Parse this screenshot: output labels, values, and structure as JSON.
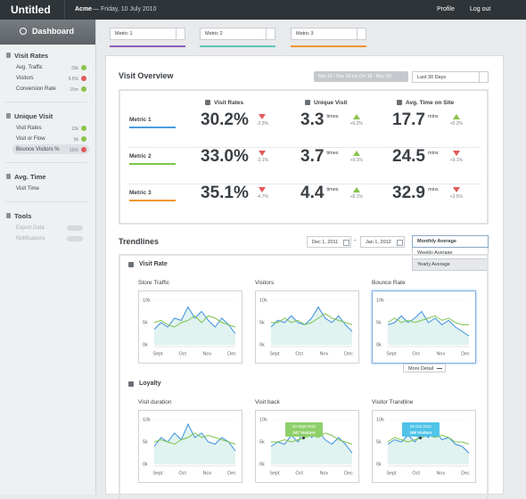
{
  "topbar": {
    "app_title": "Untitled",
    "account": "Acme",
    "date": "— Friday, 10 July 2010",
    "links": [
      "Profile",
      "Log out"
    ]
  },
  "sidebar": {
    "header": "Dashboard",
    "sections": [
      {
        "title": "Visit Rates",
        "items": [
          {
            "label": "Avg. Traffic",
            "badge": "29k",
            "trend": "up"
          },
          {
            "label": "Visitors",
            "badge": "9.5%",
            "trend": "down"
          },
          {
            "label": "Conversion Rate",
            "badge": "15m",
            "trend": "up"
          }
        ]
      },
      {
        "title": "Unique Visit",
        "items": [
          {
            "label": "Visit Rates",
            "badge": "13k",
            "trend": "up"
          },
          {
            "label": "Visit or Flow",
            "badge": "5k",
            "trend": "up"
          },
          {
            "label": "Bounce Visitors %",
            "badge": "16%",
            "trend": "down",
            "selected": true
          }
        ]
      },
      {
        "title": "Avg. Time",
        "items": [
          {
            "label": "Visit Time"
          }
        ]
      },
      {
        "title": "Tools",
        "items": [
          {
            "label": "Export Data",
            "toggle": "off"
          },
          {
            "label": "Notifications",
            "toggle": "off"
          }
        ]
      }
    ]
  },
  "metric_selectors": [
    {
      "label": "Metric 1",
      "color": "#8e5fb5"
    },
    {
      "label": "Metric 2",
      "color": "#5cc6b5"
    },
    {
      "label": "Metric 3",
      "color": "#f0962e"
    }
  ],
  "overview": {
    "title": "Visit Overview",
    "date_range": "Nov 15 - Dec 14 (vs Oct 16 - Nov 15)",
    "period": "Last 30 Days",
    "columns": [
      "Visit Rates",
      "Unique Visit",
      "Avg. Time on Site"
    ],
    "rows": [
      {
        "name": "Metric 1",
        "color": "#4a9de0",
        "cells": [
          {
            "value": "30.2%",
            "change": "-3.3%",
            "trend": "down"
          },
          {
            "value": "3.3",
            "unit": "times",
            "change": "+0.2%",
            "trend": "up"
          },
          {
            "value": "17.7",
            "unit": "mins",
            "change": "+0.2%",
            "trend": "up"
          }
        ]
      },
      {
        "name": "Metric 2",
        "color": "#7cc44c",
        "cells": [
          {
            "value": "33.0%",
            "change": "-3.1%",
            "trend": "down"
          },
          {
            "value": "3.7",
            "unit": "times",
            "change": "+9.1%",
            "trend": "up"
          },
          {
            "value": "24.5",
            "unit": "mins",
            "change": "+9.1%",
            "trend": "down"
          }
        ]
      },
      {
        "name": "Metric 3",
        "color": "#f0962e",
        "cells": [
          {
            "value": "35.1%",
            "change": "-4.7%",
            "trend": "down"
          },
          {
            "value": "4.4",
            "unit": "times",
            "change": "+8.1%",
            "trend": "up"
          },
          {
            "value": "32.9",
            "unit": "mins",
            "change": "+3.5%",
            "trend": "down"
          }
        ]
      }
    ]
  },
  "trendlines": {
    "title": "Trendlines",
    "date_from": "Dec 1, 2011",
    "separator": "-",
    "date_to": "Jan 1, 2012",
    "average_select": "Monthly Average",
    "average_options": [
      "Weekly Average",
      "Yearly Average"
    ],
    "more_detail": "More Detail",
    "groups": [
      {
        "title": "Visit Rate",
        "charts": [
          {
            "title": "Store Traffic",
            "ylim": [
              0,
              10
            ],
            "yticks": [
              {
                "value": 10,
                "label": "10k"
              },
              {
                "value": 5,
                "label": "5k"
              },
              {
                "value": 0,
                "label": "0k"
              }
            ],
            "categories": [
              "Sept",
              "Oct",
              "Nov",
              "Dec"
            ],
            "series": [
              {
                "color": "#3b8fe0",
                "values": [
                  3.5,
                  5,
                  4,
                  6,
                  5.5,
                  8.5,
                  6,
                  7.5,
                  5.5,
                  4,
                  6,
                  4.5,
                  2.5
                ]
              },
              {
                "color": "#7cc44c",
                "values": [
                  5,
                  5.5,
                  4.5,
                  4,
                  5,
                  5.5,
                  6.5,
                  5,
                  6.5,
                  6,
                  5,
                  4.5,
                  4
                ]
              }
            ]
          },
          {
            "title": "Visitors",
            "ylim": [
              0,
              10
            ],
            "yticks": [
              {
                "value": 10,
                "label": "10k"
              },
              {
                "value": 5,
                "label": "5k"
              },
              {
                "value": 0,
                "label": "0k"
              }
            ],
            "categories": [
              "Sept",
              "Oct",
              "Nov",
              "Dec"
            ],
            "series": [
              {
                "color": "#3b8fe0",
                "values": [
                  4,
                  5.5,
                  5,
                  6.5,
                  5,
                  4.5,
                  6,
                  8.5,
                  6,
                  5,
                  6.5,
                  4.5,
                  3
                ]
              },
              {
                "color": "#7cc44c",
                "values": [
                  5,
                  5,
                  6,
                  5,
                  5.5,
                  4.5,
                  5,
                  6,
                  7,
                  6,
                  5.5,
                  5,
                  4.5
                ]
              }
            ]
          },
          {
            "title": "Bounce Rate",
            "selected": true,
            "ylim": [
              0,
              10
            ],
            "yticks": [
              {
                "value": 10,
                "label": "10k"
              },
              {
                "value": 5,
                "label": "5k"
              },
              {
                "value": 0,
                "label": "0k"
              }
            ],
            "categories": [
              "Sept",
              "Oct",
              "Nov",
              "Dec"
            ],
            "series": [
              {
                "color": "#3b8fe0",
                "values": [
                  4.5,
                  5,
                  6.5,
                  5,
                  6,
                  7.5,
                  5,
                  6,
                  4.5,
                  5.5,
                  4,
                  3,
                  2
                ]
              },
              {
                "color": "#7cc44c",
                "values": [
                  5,
                  6,
                  5,
                  5.5,
                  5,
                  5.5,
                  6,
                  6.5,
                  5.5,
                  6,
                  5,
                  4.5,
                  4.5
                ]
              }
            ]
          }
        ]
      },
      {
        "title": "Loyalty",
        "charts": [
          {
            "title": "Visit duration",
            "ylim": [
              0,
              10
            ],
            "yticks": [
              {
                "value": 10,
                "label": "10k"
              },
              {
                "value": 5,
                "label": "5k"
              },
              {
                "value": 0,
                "label": "0k"
              }
            ],
            "categories": [
              "Sept",
              "Oct",
              "Nov",
              "Dec"
            ],
            "series": [
              {
                "color": "#3b8fe0",
                "values": [
                  4,
                  6,
                  5,
                  7,
                  5.5,
                  9,
                  6,
                  7,
                  5,
                  4.5,
                  6,
                  5,
                  3
                ]
              },
              {
                "color": "#7cc44c",
                "values": [
                  5,
                  5.5,
                  5,
                  4.5,
                  5.5,
                  6,
                  7,
                  6,
                  6.5,
                  6,
                  5.5,
                  5,
                  4.5
                ]
              }
            ]
          },
          {
            "title": "Visit back",
            "ylim": [
              0,
              10
            ],
            "yticks": [
              {
                "value": 10,
                "label": "10k"
              },
              {
                "value": 5,
                "label": "5k"
              },
              {
                "value": 0,
                "label": "0k"
              }
            ],
            "categories": [
              "Sept",
              "Oct",
              "Nov",
              "Dec"
            ],
            "series": [
              {
                "color": "#3b8fe0",
                "values": [
                  4,
                  5,
                  4.5,
                  6.5,
                  5,
                  8,
                  6,
                  7.5,
                  5.5,
                  4.5,
                  6,
                  4.5,
                  2.5
                ]
              },
              {
                "color": "#7cc44c",
                "values": [
                  5,
                  5,
                  5.5,
                  5,
                  5.5,
                  6,
                  6.5,
                  6,
                  7,
                  6.5,
                  5.5,
                  5,
                  4.5
                ]
              }
            ],
            "tooltip": {
              "lines": [
                "10 Sept 2011",
                "247 Visitors"
              ],
              "color": "#8fcf6a"
            }
          },
          {
            "title": "Visitor Trandline",
            "ylim": [
              0,
              10
            ],
            "yticks": [
              {
                "value": 10,
                "label": "10k"
              },
              {
                "value": 5,
                "label": "5k"
              },
              {
                "value": 0,
                "label": "0k"
              }
            ],
            "categories": [
              "Sept",
              "Oct",
              "Nov",
              "Dec"
            ],
            "series": [
              {
                "color": "#3b8fe0",
                "values": [
                  4.5,
                  5.5,
                  5,
                  6.5,
                  5,
                  7,
                  6,
                  7.5,
                  5.5,
                  6,
                  4.5,
                  4,
                  2.5
                ]
              },
              {
                "color": "#7cc44c",
                "values": [
                  5,
                  6,
                  5.5,
                  5,
                  5.5,
                  6,
                  6.5,
                  6,
                  6.5,
                  6,
                  5,
                  5,
                  4.5
                ]
              }
            ],
            "tooltip": {
              "lines": [
                "26 Oct 2011",
                "198 Visitors"
              ],
              "color": "#4fc3e8"
            }
          }
        ]
      }
    ]
  }
}
